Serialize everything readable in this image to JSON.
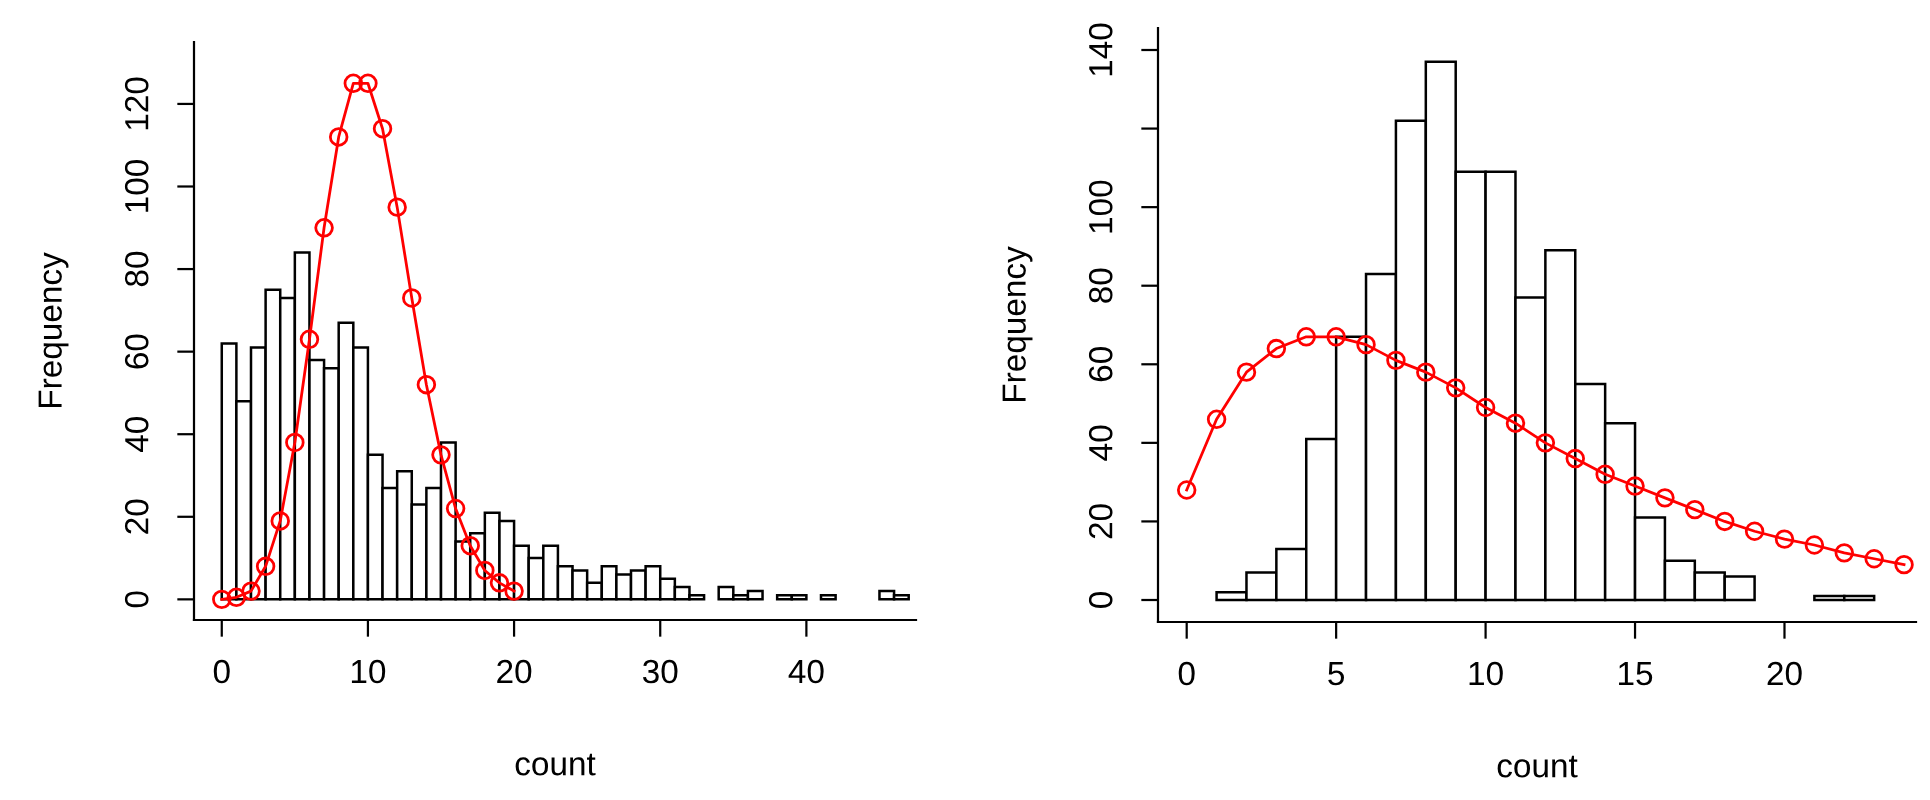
{
  "chart_data": [
    {
      "type": "histogram",
      "xlabel": "count",
      "ylabel": "Frequency",
      "color": "#ffffff",
      "bins": [
        0,
        1,
        2,
        3,
        4,
        5,
        6,
        7,
        8,
        9,
        10,
        11,
        12,
        13,
        14,
        15,
        16,
        17,
        18,
        19,
        20,
        21,
        22,
        23,
        24,
        25,
        26,
        27,
        28,
        29,
        30,
        31,
        32,
        33,
        34,
        35,
        36,
        37,
        38,
        39,
        40,
        41,
        42,
        43,
        44,
        45,
        46,
        47
      ],
      "values": [
        62,
        48,
        61,
        75,
        73,
        84,
        58,
        56,
        67,
        61,
        35,
        27,
        31,
        23,
        27,
        38,
        14,
        16,
        21,
        19,
        13,
        10,
        13,
        8,
        7,
        4,
        8,
        6,
        7,
        8,
        5,
        3,
        1,
        0,
        3,
        1,
        2,
        0,
        1,
        1,
        0,
        1,
        0,
        0,
        0,
        2,
        1
      ],
      "series": [
        {
          "type": "line",
          "color": "#ff0000",
          "marker": "circle",
          "x": [
            0,
            1,
            2,
            3,
            4,
            5,
            6,
            7,
            8,
            9,
            10,
            11,
            12,
            13,
            14,
            15,
            16,
            17,
            18,
            19,
            20
          ],
          "values": [
            0,
            0.5,
            2,
            8,
            19,
            38,
            63,
            90,
            112,
            125,
            125,
            114,
            95,
            73,
            52,
            35,
            22,
            13,
            7,
            4,
            2
          ]
        }
      ],
      "xlim": [
        -1.9,
        47.5
      ],
      "ylim": [
        -5,
        135
      ],
      "xticks": [
        0,
        10,
        20,
        30,
        40
      ],
      "yticks": [
        0,
        20,
        40,
        60,
        80,
        100,
        120
      ],
      "grid": false,
      "legend": false
    },
    {
      "type": "histogram",
      "xlabel": "count",
      "ylabel": "Frequency",
      "color": "#ffffff",
      "bins": [
        1,
        2,
        3,
        4,
        5,
        6,
        7,
        8,
        9,
        10,
        11,
        12,
        13,
        14,
        15,
        16,
        17,
        18,
        19,
        20,
        21,
        22,
        23
      ],
      "values": [
        2,
        7,
        13,
        41,
        67,
        83,
        122,
        137,
        109,
        109,
        77,
        89,
        55,
        45,
        21,
        10,
        7,
        6,
        0,
        0,
        1,
        1
      ],
      "series": [
        {
          "type": "line",
          "color": "#ff0000",
          "marker": "circle",
          "x": [
            0,
            1,
            2,
            3,
            4,
            5,
            6,
            7,
            8,
            9,
            10,
            11,
            12,
            13,
            14,
            15,
            16,
            17,
            18,
            19,
            20,
            21,
            22,
            23,
            24
          ],
          "values": [
            28,
            46,
            58,
            64,
            67,
            67,
            65,
            61,
            58,
            54,
            49,
            45,
            40,
            36,
            32,
            29,
            26,
            23,
            20,
            17.5,
            15.5,
            14,
            12,
            10.5,
            9
          ]
        }
      ],
      "xlim": [
        -0.96,
        24.4
      ],
      "ylim": [
        -5.6,
        145.6
      ],
      "xticks": [
        0,
        5,
        10,
        15,
        20
      ],
      "yticks": [
        0,
        20,
        40,
        60,
        80,
        100,
        {
          "value": 120,
          "label": null
        },
        140
      ],
      "grid": false,
      "legend": false
    }
  ]
}
